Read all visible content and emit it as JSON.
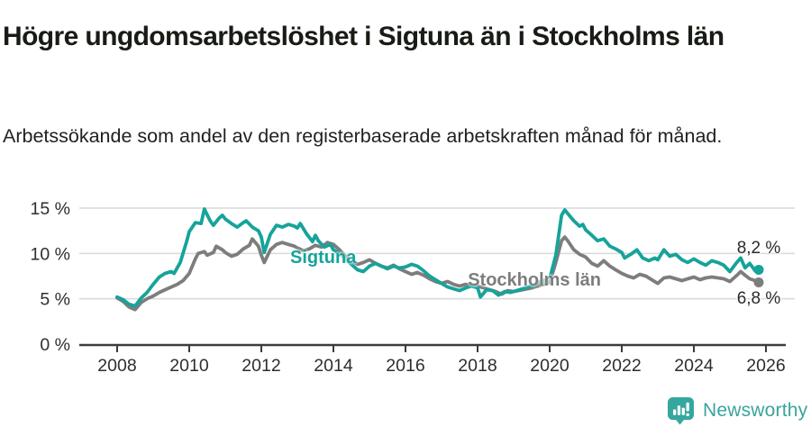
{
  "header": {
    "title": "Högre ungdomsarbetslöshet i Sigtuna än i Stockholms län",
    "subtitle": "Arbetssökande som andel av den registerbaserade arbetskraften månad för månad."
  },
  "branding": {
    "wordmark": "Newsworthy",
    "icon": "newsworthy-speech-bubble-bar-chart-icon",
    "color": "#3BA39C"
  },
  "colors": {
    "sigtuna_line": "#16A39A",
    "stockholm_line": "#7D7D7D",
    "axis": "#3C3C3C",
    "grid": "#D9D9D9",
    "tick_label": "#2E2E2E",
    "annotation": "#2B2B2B"
  },
  "chart_data": {
    "type": "line",
    "title": "Högre ungdomsarbetslöshet i Sigtuna än i Stockholms län",
    "subtitle": "Arbetssökande som andel av den registerbaserade arbetskraften månad för månad.",
    "xlabel": "",
    "ylabel": "",
    "xlim": [
      2007.45,
      2026.75
    ],
    "ylim": [
      0,
      15.5
    ],
    "grid": "horizontal",
    "legend_position": "inline-labels",
    "x_axis": {
      "ticks": [
        2008,
        2010,
        2012,
        2014,
        2016,
        2018,
        2020,
        2022,
        2024,
        2026
      ]
    },
    "y_axis": {
      "ticks": [
        {
          "value": 0,
          "label": "0 %"
        },
        {
          "value": 5,
          "label": "5 %"
        },
        {
          "value": 10,
          "label": "10 %"
        },
        {
          "value": 15,
          "label": "15 %"
        }
      ]
    },
    "series": [
      {
        "name": "Stockholms län",
        "color": "#7D7D7D",
        "end_label": "6,8 %",
        "end_value": 6.8,
        "label_anchor": {
          "x": 2017.73,
          "y_top": 8.14
        },
        "end_label_side": "below",
        "points": [
          [
            2008.0,
            5.1
          ],
          [
            2008.17,
            4.7
          ],
          [
            2008.33,
            4.1
          ],
          [
            2008.5,
            3.8
          ],
          [
            2008.67,
            4.6
          ],
          [
            2008.83,
            5.0
          ],
          [
            2009.0,
            5.3
          ],
          [
            2009.17,
            5.7
          ],
          [
            2009.33,
            6.0
          ],
          [
            2009.5,
            6.3
          ],
          [
            2009.67,
            6.6
          ],
          [
            2009.83,
            7.0
          ],
          [
            2010.0,
            7.8
          ],
          [
            2010.17,
            9.4
          ],
          [
            2010.25,
            10.0
          ],
          [
            2010.42,
            10.2
          ],
          [
            2010.5,
            9.8
          ],
          [
            2010.67,
            10.1
          ],
          [
            2010.75,
            10.8
          ],
          [
            2010.92,
            10.4
          ],
          [
            2011.0,
            10.1
          ],
          [
            2011.17,
            9.7
          ],
          [
            2011.33,
            9.9
          ],
          [
            2011.5,
            10.5
          ],
          [
            2011.67,
            10.9
          ],
          [
            2011.75,
            11.6
          ],
          [
            2011.92,
            10.8
          ],
          [
            2012.0,
            9.8
          ],
          [
            2012.08,
            9.0
          ],
          [
            2012.25,
            10.4
          ],
          [
            2012.42,
            11.0
          ],
          [
            2012.58,
            11.2
          ],
          [
            2012.75,
            11.0
          ],
          [
            2012.92,
            10.8
          ],
          [
            2013.0,
            10.6
          ],
          [
            2013.17,
            10.3
          ],
          [
            2013.33,
            10.5
          ],
          [
            2013.5,
            10.9
          ],
          [
            2013.67,
            10.7
          ],
          [
            2013.83,
            11.2
          ],
          [
            2014.0,
            11.0
          ],
          [
            2014.17,
            10.4
          ],
          [
            2014.33,
            9.7
          ],
          [
            2014.5,
            9.2
          ],
          [
            2014.67,
            8.8
          ],
          [
            2014.83,
            9.0
          ],
          [
            2015.0,
            9.3
          ],
          [
            2015.17,
            8.9
          ],
          [
            2015.33,
            8.6
          ],
          [
            2015.5,
            8.4
          ],
          [
            2015.67,
            8.7
          ],
          [
            2015.83,
            8.3
          ],
          [
            2016.0,
            8.0
          ],
          [
            2016.17,
            7.7
          ],
          [
            2016.33,
            7.9
          ],
          [
            2016.5,
            7.6
          ],
          [
            2016.67,
            7.2
          ],
          [
            2016.83,
            6.9
          ],
          [
            2017.0,
            6.7
          ],
          [
            2017.17,
            6.9
          ],
          [
            2017.33,
            6.6
          ],
          [
            2017.5,
            6.4
          ],
          [
            2017.67,
            6.6
          ],
          [
            2017.83,
            6.5
          ],
          [
            2018.0,
            6.4
          ],
          [
            2018.17,
            6.2
          ],
          [
            2018.33,
            6.0
          ],
          [
            2018.5,
            5.8
          ],
          [
            2018.67,
            5.5
          ],
          [
            2018.83,
            5.9
          ],
          [
            2019.0,
            5.8
          ],
          [
            2019.25,
            6.0
          ],
          [
            2019.5,
            6.2
          ],
          [
            2019.75,
            6.5
          ],
          [
            2020.0,
            6.8
          ],
          [
            2020.17,
            9.0
          ],
          [
            2020.33,
            11.4
          ],
          [
            2020.42,
            11.8
          ],
          [
            2020.5,
            11.4
          ],
          [
            2020.67,
            10.4
          ],
          [
            2020.83,
            9.9
          ],
          [
            2021.0,
            9.6
          ],
          [
            2021.17,
            8.9
          ],
          [
            2021.33,
            8.6
          ],
          [
            2021.5,
            9.2
          ],
          [
            2021.67,
            8.6
          ],
          [
            2021.83,
            8.2
          ],
          [
            2022.0,
            7.8
          ],
          [
            2022.17,
            7.5
          ],
          [
            2022.33,
            7.3
          ],
          [
            2022.5,
            7.7
          ],
          [
            2022.67,
            7.5
          ],
          [
            2022.83,
            7.1
          ],
          [
            2023.0,
            6.7
          ],
          [
            2023.17,
            7.3
          ],
          [
            2023.33,
            7.4
          ],
          [
            2023.5,
            7.2
          ],
          [
            2023.67,
            7.0
          ],
          [
            2023.83,
            7.2
          ],
          [
            2024.0,
            7.4
          ],
          [
            2024.17,
            7.1
          ],
          [
            2024.33,
            7.3
          ],
          [
            2024.5,
            7.4
          ],
          [
            2024.67,
            7.3
          ],
          [
            2024.83,
            7.2
          ],
          [
            2025.0,
            6.9
          ],
          [
            2025.17,
            7.5
          ],
          [
            2025.3,
            8.0
          ],
          [
            2025.42,
            7.6
          ],
          [
            2025.55,
            7.2
          ],
          [
            2025.7,
            7.0
          ],
          [
            2025.8,
            6.8
          ]
        ]
      },
      {
        "name": "Sigtuna",
        "color": "#16A39A",
        "end_label": "8,2 %",
        "end_value": 8.2,
        "label_anchor": {
          "x": 2012.8,
          "y_top": 10.62
        },
        "end_label_side": "above",
        "points": [
          [
            2008.0,
            5.2
          ],
          [
            2008.17,
            4.9
          ],
          [
            2008.33,
            4.4
          ],
          [
            2008.5,
            4.2
          ],
          [
            2008.67,
            5.1
          ],
          [
            2008.83,
            5.7
          ],
          [
            2009.0,
            6.6
          ],
          [
            2009.17,
            7.4
          ],
          [
            2009.33,
            7.8
          ],
          [
            2009.5,
            8.0
          ],
          [
            2009.58,
            7.8
          ],
          [
            2009.75,
            9.0
          ],
          [
            2009.92,
            11.2
          ],
          [
            2010.0,
            12.4
          ],
          [
            2010.17,
            13.4
          ],
          [
            2010.33,
            13.3
          ],
          [
            2010.42,
            14.9
          ],
          [
            2010.58,
            13.6
          ],
          [
            2010.67,
            13.1
          ],
          [
            2010.83,
            13.9
          ],
          [
            2010.92,
            14.2
          ],
          [
            2011.0,
            13.8
          ],
          [
            2011.17,
            13.3
          ],
          [
            2011.33,
            12.9
          ],
          [
            2011.5,
            13.4
          ],
          [
            2011.58,
            13.6
          ],
          [
            2011.75,
            12.9
          ],
          [
            2011.92,
            12.5
          ],
          [
            2012.0,
            11.8
          ],
          [
            2012.08,
            10.1
          ],
          [
            2012.25,
            12.1
          ],
          [
            2012.42,
            13.1
          ],
          [
            2012.58,
            12.9
          ],
          [
            2012.75,
            13.2
          ],
          [
            2012.92,
            13.0
          ],
          [
            2013.0,
            12.8
          ],
          [
            2013.08,
            13.3
          ],
          [
            2013.25,
            12.2
          ],
          [
            2013.42,
            11.3
          ],
          [
            2013.5,
            12.0
          ],
          [
            2013.58,
            11.4
          ],
          [
            2013.75,
            10.7
          ],
          [
            2013.92,
            11.0
          ],
          [
            2014.0,
            10.4
          ],
          [
            2014.17,
            10.0
          ],
          [
            2014.33,
            9.4
          ],
          [
            2014.5,
            8.8
          ],
          [
            2014.67,
            8.2
          ],
          [
            2014.83,
            8.0
          ],
          [
            2015.0,
            8.6
          ],
          [
            2015.17,
            8.9
          ],
          [
            2015.33,
            8.6
          ],
          [
            2015.5,
            8.3
          ],
          [
            2015.67,
            8.6
          ],
          [
            2015.83,
            8.4
          ],
          [
            2016.0,
            8.5
          ],
          [
            2016.17,
            8.8
          ],
          [
            2016.33,
            8.6
          ],
          [
            2016.5,
            8.1
          ],
          [
            2016.67,
            7.5
          ],
          [
            2016.83,
            7.1
          ],
          [
            2017.0,
            6.7
          ],
          [
            2017.17,
            6.3
          ],
          [
            2017.33,
            6.1
          ],
          [
            2017.5,
            5.9
          ],
          [
            2017.67,
            6.2
          ],
          [
            2017.83,
            6.4
          ],
          [
            2018.0,
            6.2
          ],
          [
            2018.08,
            5.2
          ],
          [
            2018.25,
            6.0
          ],
          [
            2018.42,
            5.9
          ],
          [
            2018.58,
            5.4
          ],
          [
            2018.75,
            5.8
          ],
          [
            2018.92,
            5.7
          ],
          [
            2019.0,
            5.8
          ],
          [
            2019.25,
            6.1
          ],
          [
            2019.5,
            6.4
          ],
          [
            2019.75,
            6.9
          ],
          [
            2019.92,
            7.1
          ],
          [
            2020.0,
            7.2
          ],
          [
            2020.17,
            9.8
          ],
          [
            2020.33,
            14.2
          ],
          [
            2020.42,
            14.8
          ],
          [
            2020.5,
            14.4
          ],
          [
            2020.67,
            13.6
          ],
          [
            2020.83,
            13.0
          ],
          [
            2020.92,
            13.2
          ],
          [
            2021.0,
            12.6
          ],
          [
            2021.17,
            12.0
          ],
          [
            2021.33,
            11.4
          ],
          [
            2021.5,
            11.6
          ],
          [
            2021.67,
            10.8
          ],
          [
            2021.83,
            10.5
          ],
          [
            2022.0,
            10.1
          ],
          [
            2022.08,
            9.5
          ],
          [
            2022.25,
            9.9
          ],
          [
            2022.42,
            10.4
          ],
          [
            2022.58,
            9.5
          ],
          [
            2022.75,
            9.2
          ],
          [
            2022.92,
            9.5
          ],
          [
            2023.0,
            9.3
          ],
          [
            2023.17,
            10.4
          ],
          [
            2023.33,
            9.7
          ],
          [
            2023.5,
            9.9
          ],
          [
            2023.67,
            9.3
          ],
          [
            2023.83,
            9.0
          ],
          [
            2024.0,
            9.4
          ],
          [
            2024.17,
            9.0
          ],
          [
            2024.33,
            8.7
          ],
          [
            2024.5,
            9.2
          ],
          [
            2024.67,
            9.0
          ],
          [
            2024.83,
            8.7
          ],
          [
            2025.0,
            8.0
          ],
          [
            2025.17,
            8.9
          ],
          [
            2025.3,
            9.5
          ],
          [
            2025.42,
            8.4
          ],
          [
            2025.55,
            8.9
          ],
          [
            2025.7,
            8.1
          ],
          [
            2025.8,
            8.2
          ]
        ]
      }
    ]
  }
}
